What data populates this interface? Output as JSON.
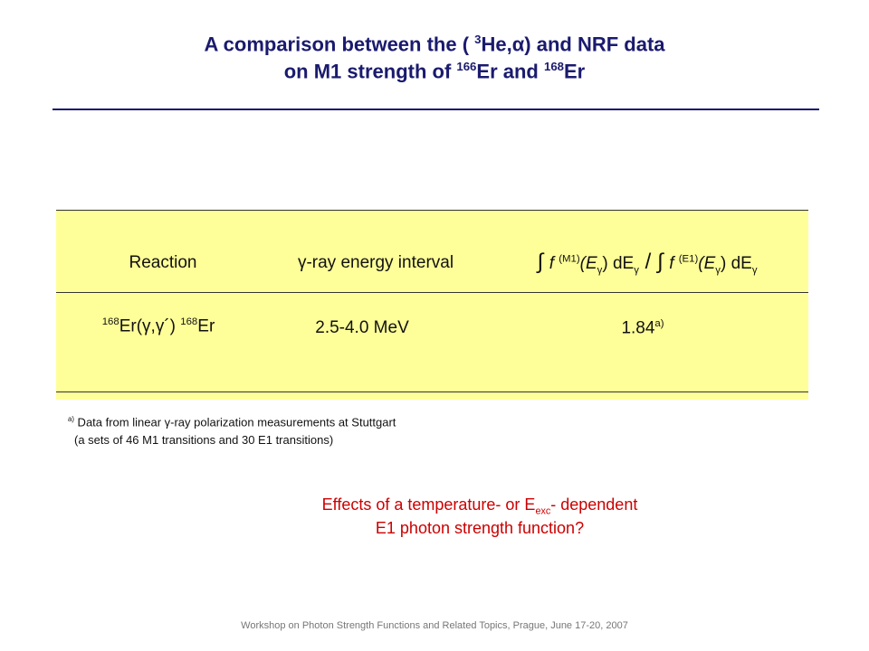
{
  "title": {
    "line1": [
      "A comparison between the ( ",
      "3",
      "He,",
      "α",
      ") and NRF data"
    ],
    "line2": [
      "on M1 strength of ",
      "166",
      "Er and ",
      "168",
      "Er"
    ]
  },
  "table": {
    "header": {
      "reaction": "Reaction",
      "interval": "γ-ray energy interval",
      "ratio": [
        "∫ ",
        "f ",
        "(M1)",
        "(E",
        "γ",
        ") dE",
        "γ",
        " / ",
        "∫ ",
        "f ",
        "(E1)",
        "(E",
        "γ",
        ") dE",
        "γ"
      ]
    },
    "row": {
      "reaction": [
        "168",
        "Er(γ,γ´) ",
        "168",
        "Er"
      ],
      "interval": "2.5-4.0 MeV",
      "ratio": [
        "1.84",
        "a)"
      ]
    }
  },
  "footnote": {
    "line1": [
      "a)",
      " Data from linear γ-ray polarization measurements at Stuttgart"
    ],
    "line2": "(a sets of 46 M1 transitions and 30 E1 transitions)"
  },
  "question": {
    "line1": [
      "Effects of a temperature- or E",
      "exc",
      "- dependent"
    ],
    "line2": "E1 photon strength function?"
  },
  "footer": "Workshop on Photon Strength Functions and Related Topics, Prague, June 17-20, 2007"
}
